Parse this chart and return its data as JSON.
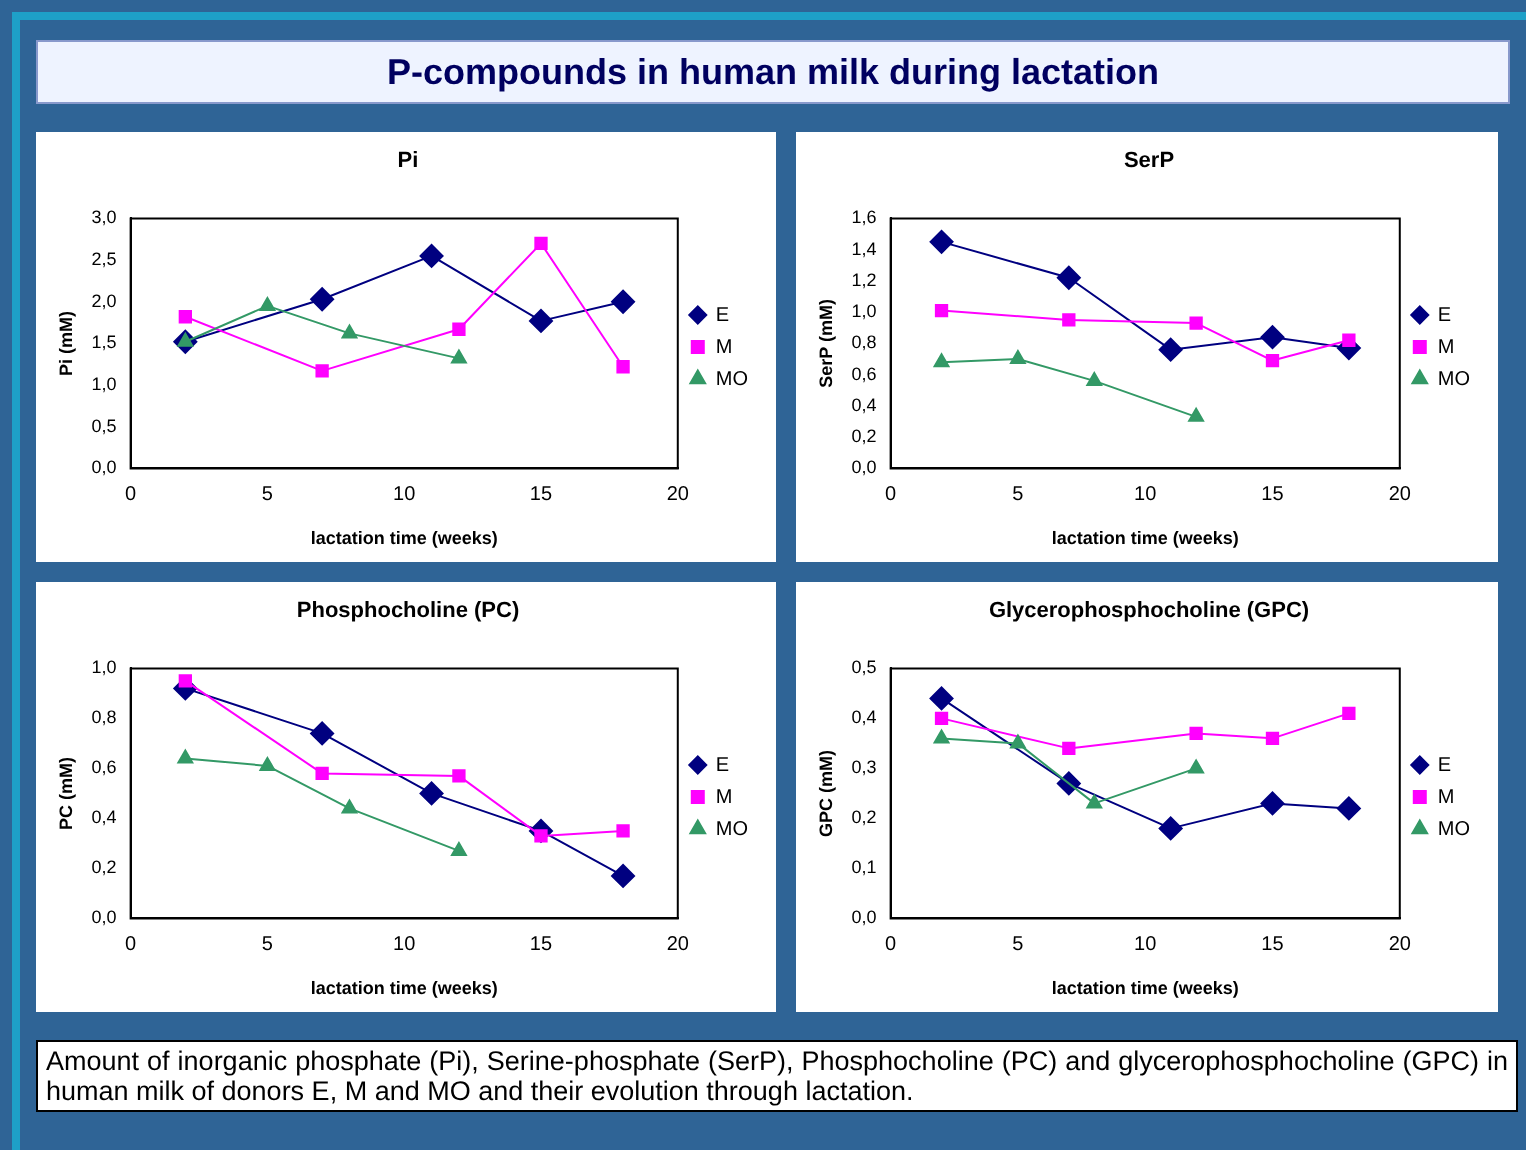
{
  "chart_data": [
    {
      "type": "other",
      "title": "P-compounds in human milk during lactation"
    },
    {
      "type": "line",
      "title": "Pi",
      "xlabel": "lactation time (weeks)",
      "ylabel": "Pi (mM)",
      "xlim": [
        0,
        20
      ],
      "xticks": [
        0,
        5,
        10,
        15,
        20
      ],
      "ylim": [
        0,
        3
      ],
      "yticks": [
        {
          "value": 0,
          "label": "0,0"
        },
        {
          "value": 0.5,
          "label": "0,5"
        },
        {
          "value": 1,
          "label": "1,0"
        },
        {
          "value": 1.5,
          "label": "1,5"
        },
        {
          "value": 2,
          "label": "2,0"
        },
        {
          "value": 2.5,
          "label": "2,5"
        },
        {
          "value": 3,
          "label": "3,0"
        }
      ],
      "grid": false,
      "legend": "right",
      "series": [
        {
          "name": "E",
          "color": "#000080",
          "marker": "diamond",
          "x": [
            2,
            7,
            11,
            15,
            18
          ],
          "values": [
            1.52,
            2.03,
            2.55,
            1.77,
            2.0
          ]
        },
        {
          "name": "M",
          "color": "#ff00ff",
          "marker": "square",
          "x": [
            2,
            7,
            12,
            15,
            18
          ],
          "values": [
            1.82,
            1.17,
            1.67,
            2.7,
            1.22
          ]
        },
        {
          "name": "MO",
          "color": "#339966",
          "marker": "triangle",
          "x": [
            2,
            5,
            8,
            12
          ],
          "values": [
            1.52,
            1.95,
            1.62,
            1.32
          ]
        }
      ]
    },
    {
      "type": "line",
      "title": "SerP",
      "xlabel": "lactation time (weeks)",
      "ylabel": "SerP (mM)",
      "xlim": [
        0,
        20
      ],
      "xticks": [
        0,
        5,
        10,
        15,
        20
      ],
      "ylim": [
        0,
        1.6
      ],
      "yticks": [
        {
          "value": 0,
          "label": "0,0"
        },
        {
          "value": 0.2,
          "label": "0,2"
        },
        {
          "value": 0.4,
          "label": "0,4"
        },
        {
          "value": 0.6,
          "label": "0,6"
        },
        {
          "value": 0.8,
          "label": "0,8"
        },
        {
          "value": 1,
          "label": "1,0"
        },
        {
          "value": 1.2,
          "label": "1,2"
        },
        {
          "value": 1.4,
          "label": "1,4"
        },
        {
          "value": 1.6,
          "label": "1,6"
        }
      ],
      "grid": false,
      "legend": "right",
      "series": [
        {
          "name": "E",
          "color": "#000080",
          "marker": "diamond",
          "x": [
            2,
            7,
            11,
            15,
            18
          ],
          "values": [
            1.45,
            1.22,
            0.76,
            0.84,
            0.77
          ]
        },
        {
          "name": "M",
          "color": "#ff00ff",
          "marker": "square",
          "x": [
            2,
            7,
            12,
            15,
            18
          ],
          "values": [
            1.01,
            0.95,
            0.93,
            0.69,
            0.82
          ]
        },
        {
          "name": "MO",
          "color": "#339966",
          "marker": "triangle",
          "x": [
            2,
            5,
            8,
            12
          ],
          "values": [
            0.68,
            0.7,
            0.56,
            0.33
          ]
        }
      ]
    },
    {
      "type": "line",
      "title": "Phosphocholine (PC)",
      "xlabel": "lactation time (weeks)",
      "ylabel": "PC (mM)",
      "xlim": [
        0,
        20
      ],
      "xticks": [
        0,
        5,
        10,
        15,
        20
      ],
      "ylim": [
        0,
        1
      ],
      "yticks": [
        {
          "value": 0,
          "label": "0,0"
        },
        {
          "value": 0.2,
          "label": "0,2"
        },
        {
          "value": 0.4,
          "label": "0,4"
        },
        {
          "value": 0.6,
          "label": "0,6"
        },
        {
          "value": 0.8,
          "label": "0,8"
        },
        {
          "value": 1,
          "label": "1,0"
        }
      ],
      "grid": false,
      "legend": "right",
      "series": [
        {
          "name": "E",
          "color": "#000080",
          "marker": "diamond",
          "x": [
            2,
            7,
            11,
            15,
            18
          ],
          "values": [
            0.92,
            0.74,
            0.5,
            0.35,
            0.17
          ]
        },
        {
          "name": "M",
          "color": "#ff00ff",
          "marker": "square",
          "x": [
            2,
            7,
            12,
            15,
            18
          ],
          "values": [
            0.95,
            0.58,
            0.57,
            0.33,
            0.35
          ]
        },
        {
          "name": "MO",
          "color": "#339966",
          "marker": "triangle",
          "x": [
            2,
            5,
            8,
            12
          ],
          "values": [
            0.64,
            0.61,
            0.44,
            0.27
          ]
        }
      ]
    },
    {
      "type": "line",
      "title": "Glycerophosphocholine (GPC)",
      "xlabel": "lactation time (weeks)",
      "ylabel": "GPC (mM)",
      "xlim": [
        0,
        20
      ],
      "xticks": [
        0,
        5,
        10,
        15,
        20
      ],
      "ylim": [
        0,
        0.5
      ],
      "yticks": [
        {
          "value": 0,
          "label": "0,0"
        },
        {
          "value": 0.1,
          "label": "0,1"
        },
        {
          "value": 0.2,
          "label": "0,2"
        },
        {
          "value": 0.3,
          "label": "0,3"
        },
        {
          "value": 0.4,
          "label": "0,4"
        },
        {
          "value": 0.5,
          "label": "0,5"
        }
      ],
      "grid": false,
      "legend": "right",
      "series": [
        {
          "name": "E",
          "color": "#000080",
          "marker": "diamond",
          "x": [
            2,
            7,
            11,
            15,
            18
          ],
          "values": [
            0.44,
            0.27,
            0.18,
            0.23,
            0.22
          ]
        },
        {
          "name": "M",
          "color": "#ff00ff",
          "marker": "square",
          "x": [
            2,
            7,
            12,
            15,
            18
          ],
          "values": [
            0.4,
            0.34,
            0.37,
            0.36,
            0.41
          ]
        },
        {
          "name": "MO",
          "color": "#339966",
          "marker": "triangle",
          "x": [
            2,
            5,
            8,
            12
          ],
          "values": [
            0.36,
            0.35,
            0.23,
            0.3
          ]
        }
      ]
    },
    {
      "type": "other",
      "annotations": [
        "Amount of inorganic phosphate (Pi), Serine-phosphate (SerP), Phosphocholine (PC) and glycerophosphocholine (GPC) in human milk of donors E, M and MO and their evolution through lactation."
      ]
    }
  ]
}
